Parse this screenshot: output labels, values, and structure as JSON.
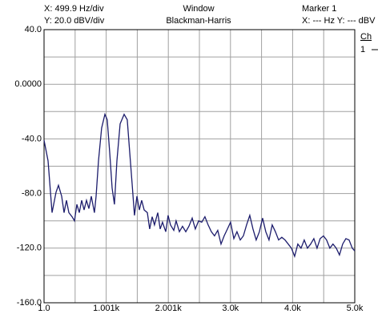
{
  "chart_data": {
    "type": "line",
    "annotations": [
      "X: 499.9 Hz/div",
      "Y: 20.0 dBV/div",
      "Window",
      "Blackman-Harris",
      "Marker 1",
      "X: --- Hz Y: --- dBV"
    ],
    "legend_title": "Ch",
    "legend": "right",
    "xlim": [
      1,
      5000
    ],
    "ylim": [
      -160,
      40
    ],
    "xticks": [
      {
        "value": 1,
        "label": "1.0"
      },
      {
        "value": 1000.8,
        "label": "1.001k"
      },
      {
        "value": 2000.6,
        "label": "2.001k"
      },
      {
        "value": 3000.4,
        "label": "3.0k"
      },
      {
        "value": 4000.2,
        "label": "4.0k"
      },
      {
        "value": 5000,
        "label": "5.0k"
      }
    ],
    "yticks": [
      {
        "value": 40,
        "label": "40.0"
      },
      {
        "value": 0,
        "label": "0.0000"
      },
      {
        "value": -40,
        "label": "-40.0"
      },
      {
        "value": -80,
        "label": "-80.0"
      },
      {
        "value": -120,
        "label": "-120.0"
      },
      {
        "value": -160,
        "label": "-160.0"
      }
    ],
    "xminor": [
      500.9,
      1500.7,
      2500.5,
      3500.3,
      4500.1
    ],
    "yminor": [
      20,
      -20,
      -60,
      -100,
      -140
    ],
    "grid": true,
    "x": [
      1,
      65,
      130,
      194,
      233,
      284,
      323,
      362,
      400,
      452,
      490,
      529,
      568,
      606,
      645,
      684,
      722,
      761,
      812,
      838,
      877,
      928,
      980,
      1018,
      1057,
      1096,
      1134,
      1173,
      1225,
      1289,
      1340,
      1379,
      1418,
      1456,
      1495,
      1534,
      1572,
      1611,
      1663,
      1701,
      1740,
      1778,
      1830,
      1869,
      1907,
      1959,
      1997,
      2036,
      2088,
      2126,
      2178,
      2229,
      2281,
      2332,
      2384,
      2435,
      2487,
      2538,
      2590,
      2641,
      2693,
      2744,
      2796,
      2848,
      2899,
      2951,
      3002,
      3054,
      3105,
      3157,
      3208,
      3260,
      3311,
      3363,
      3414,
      3466,
      3517,
      3569,
      3620,
      3672,
      3723,
      3775,
      3826,
      3878,
      3929,
      3981,
      4032,
      4084,
      4135,
      4187,
      4238,
      4290,
      4341,
      4393,
      4444,
      4496,
      4547,
      4599,
      4650,
      4702,
      4754,
      4805,
      4857,
      4908,
      4960,
      4999
    ],
    "series": [
      {
        "name": "1",
        "color": "#1c1c6c",
        "values": [
          -41,
          -56,
          -94,
          -79,
          -74,
          -82,
          -94,
          -85,
          -94,
          -97,
          -100,
          -88,
          -94,
          -85,
          -92,
          -85,
          -91,
          -82,
          -94,
          -82,
          -56,
          -32,
          -22,
          -26,
          -50,
          -76,
          -88,
          -56,
          -29,
          -22,
          -26,
          -50,
          -73,
          -96,
          -82,
          -92,
          -85,
          -92,
          -94,
          -106,
          -97,
          -103,
          -94,
          -106,
          -101,
          -108,
          -96,
          -103,
          -107,
          -100,
          -108,
          -104,
          -108,
          -104,
          -98,
          -106,
          -100,
          -101,
          -97,
          -103,
          -108,
          -111,
          -107,
          -117,
          -111,
          -106,
          -101,
          -113,
          -108,
          -114,
          -111,
          -103,
          -96,
          -106,
          -114,
          -108,
          -98,
          -108,
          -114,
          -103,
          -108,
          -114,
          -112,
          -114,
          -117,
          -120,
          -126,
          -117,
          -120,
          -114,
          -120,
          -117,
          -113,
          -120,
          -113,
          -111,
          -114,
          -120,
          -117,
          -120,
          -125,
          -117,
          -113,
          -114,
          -120,
          -122
        ]
      }
    ]
  }
}
